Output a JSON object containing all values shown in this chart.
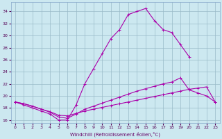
{
  "xlabel": "Windchill (Refroidissement éolien,°C)",
  "line1_x": [
    0,
    1,
    2,
    3,
    4,
    5,
    6,
    7,
    8,
    9,
    10,
    11,
    12,
    13,
    14,
    15,
    16,
    17,
    18,
    19,
    20
  ],
  "line1_y": [
    19.0,
    18.5,
    18.0,
    17.5,
    17.0,
    16.0,
    16.0,
    18.5,
    22.0,
    24.5,
    27.0,
    29.5,
    31.0,
    33.5,
    34.0,
    34.5,
    32.5,
    31.0,
    30.5,
    28.5,
    26.5
  ],
  "line2_x": [
    0,
    1,
    2,
    3,
    4,
    5,
    6,
    7,
    8,
    9,
    10,
    11,
    12,
    13,
    14,
    15,
    16,
    17,
    18,
    19,
    20,
    21,
    22,
    23
  ],
  "line2_y": [
    19.0,
    18.7,
    18.3,
    17.8,
    17.3,
    16.5,
    16.3,
    17.0,
    17.8,
    18.3,
    18.8,
    19.3,
    19.8,
    20.3,
    20.8,
    21.2,
    21.6,
    22.0,
    22.3,
    23.0,
    21.0,
    20.5,
    20.0,
    19.0
  ],
  "line3_x": [
    0,
    1,
    2,
    3,
    4,
    5,
    6,
    7,
    8,
    9,
    10,
    11,
    12,
    13,
    14,
    15,
    16,
    17,
    18,
    19,
    20,
    21,
    22,
    23
  ],
  "line3_y": [
    19.0,
    18.7,
    18.3,
    17.8,
    17.4,
    16.8,
    16.7,
    17.1,
    17.5,
    17.8,
    18.1,
    18.4,
    18.7,
    19.0,
    19.3,
    19.6,
    19.9,
    20.2,
    20.5,
    20.8,
    21.1,
    21.3,
    21.5,
    19.0
  ],
  "line_color": "#aa00aa",
  "bg_color": "#cce8f0",
  "grid_color": "#99bbc8",
  "ylim": [
    15.5,
    35.5
  ],
  "yticks": [
    16,
    18,
    20,
    22,
    24,
    26,
    28,
    30,
    32,
    34
  ],
  "xticks": [
    0,
    1,
    2,
    3,
    4,
    5,
    6,
    7,
    8,
    9,
    10,
    11,
    12,
    13,
    14,
    15,
    16,
    17,
    18,
    19,
    20,
    21,
    22,
    23
  ],
  "xlim": [
    -0.5,
    23.5
  ]
}
